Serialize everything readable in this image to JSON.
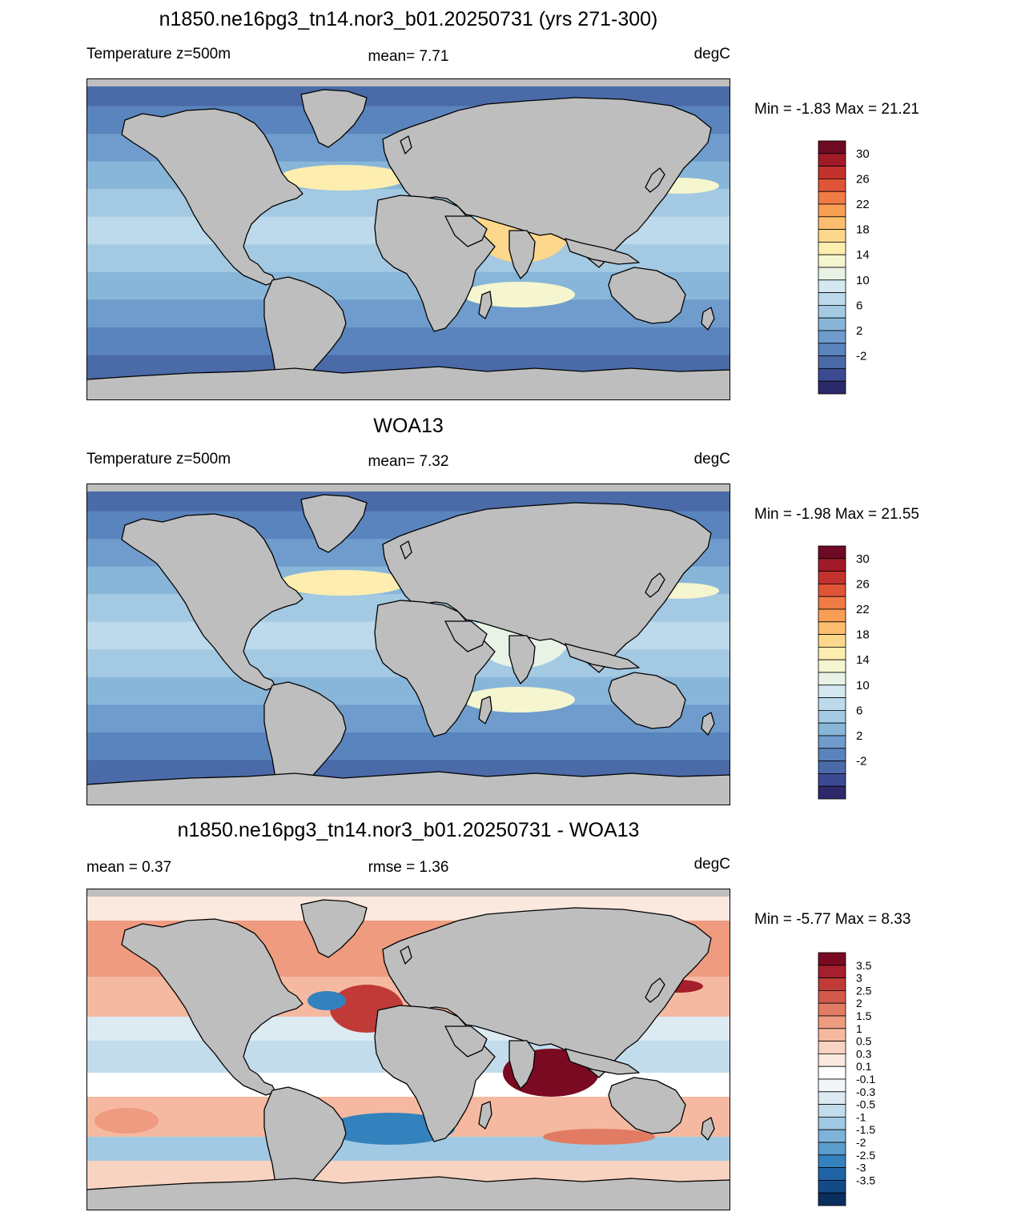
{
  "panels": [
    {
      "title": "n1850.ne16pg3_tn14.nor3_b01.20250731 (yrs 271-300)",
      "left_label": "Temperature z=500m",
      "center_label": "mean=   7.71",
      "right_label": "degC",
      "minmax": "Min =  -1.83 Max =  21.21",
      "colorbar": {
        "colors": [
          "#2c2a6b",
          "#3b4a92",
          "#4a6aa8",
          "#5a84bd",
          "#6f9ccc",
          "#88b6d9",
          "#a3c9e3",
          "#bcdaeb",
          "#d4e8f0",
          "#e8f3e6",
          "#f5f5cf",
          "#fdeeb0",
          "#fdd78b",
          "#fcbd6e",
          "#f99e55",
          "#f07b44",
          "#e05438",
          "#c4322e",
          "#a01b27",
          "#6f0a24"
        ],
        "labels": [
          "30",
          "26",
          "22",
          "18",
          "14",
          "10",
          "6",
          "2",
          "-2"
        ]
      }
    },
    {
      "title": "WOA13",
      "left_label": "Temperature z=500m",
      "center_label": "mean=   7.32",
      "right_label": "degC",
      "minmax": "Min =  -1.98 Max =  21.55",
      "colorbar": {
        "colors": [
          "#2c2a6b",
          "#3b4a92",
          "#4a6aa8",
          "#5a84bd",
          "#6f9ccc",
          "#88b6d9",
          "#a3c9e3",
          "#bcdaeb",
          "#d4e8f0",
          "#e8f3e6",
          "#f5f5cf",
          "#fdeeb0",
          "#fdd78b",
          "#fcbd6e",
          "#f99e55",
          "#f07b44",
          "#e05438",
          "#c4322e",
          "#a01b27",
          "#6f0a24"
        ],
        "labels": [
          "30",
          "26",
          "22",
          "18",
          "14",
          "10",
          "6",
          "2",
          "-2"
        ]
      }
    },
    {
      "title": "n1850.ne16pg3_tn14.nor3_b01.20250731 - WOA13",
      "left_label": "mean =   0.37",
      "center_label": "rmse =   1.36",
      "right_label": "degC",
      "minmax": "Min =  -5.77 Max =   8.33",
      "colorbar": {
        "colors": [
          "#0a2f5e",
          "#134b88",
          "#1f64a6",
          "#3482bd",
          "#5a9ccc",
          "#7db3d8",
          "#a2c9e3",
          "#c2dcec",
          "#dceaf2",
          "#f0f5f8",
          "#ffffff",
          "#fbe8df",
          "#f9d3c1",
          "#f5b9a1",
          "#ee9b80",
          "#e27b63",
          "#d35a4b",
          "#c03a37",
          "#a51f2c",
          "#7a0a22"
        ],
        "labels": [
          "3.5",
          "3",
          "2.5",
          "2",
          "1.5",
          "1",
          "0.5",
          "0.3",
          "0.1",
          "-0.1",
          "-0.3",
          "-0.5",
          "-1",
          "-1.5",
          "-2",
          "-2.5",
          "-3",
          "-3.5"
        ]
      }
    }
  ]
}
